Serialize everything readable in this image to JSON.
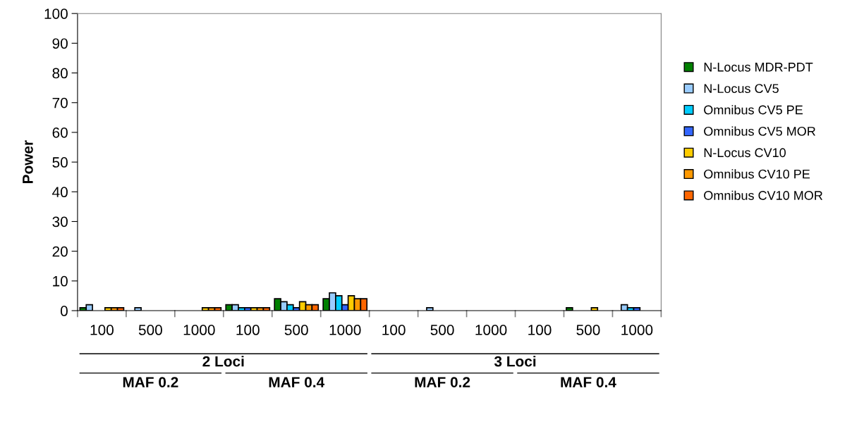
{
  "chart_data": {
    "type": "bar",
    "ylabel": "Power",
    "categories": [
      "100",
      "500",
      "1000",
      "100",
      "500",
      "1000",
      "100",
      "500",
      "1000",
      "100",
      "500",
      "1000"
    ],
    "series": [
      {
        "name": "N-Locus MDR-PDT",
        "color": "#008000",
        "values": [
          1,
          0,
          0,
          2,
          4,
          4,
          0,
          0,
          0,
          0,
          1,
          0
        ]
      },
      {
        "name": "N-Locus CV5",
        "color": "#99ccff",
        "values": [
          2,
          1,
          0,
          2,
          3,
          6,
          0,
          1,
          0,
          0,
          0,
          2
        ]
      },
      {
        "name": "Omnibus CV5 PE",
        "color": "#00ccff",
        "values": [
          0,
          0,
          0,
          1,
          2,
          5,
          0,
          0,
          0,
          0,
          0,
          1
        ]
      },
      {
        "name": "Omnibus CV5 MOR",
        "color": "#3366ff",
        "values": [
          0,
          0,
          0,
          1,
          1,
          2,
          0,
          0,
          0,
          0,
          0,
          1
        ]
      },
      {
        "name": "N-Locus CV10",
        "color": "#ffcc00",
        "values": [
          1,
          0,
          1,
          1,
          3,
          5,
          0,
          0,
          0,
          0,
          1,
          0
        ]
      },
      {
        "name": "Omnibus CV10 PE",
        "color": "#ff9900",
        "values": [
          1,
          0,
          1,
          1,
          2,
          4,
          0,
          0,
          0,
          0,
          0,
          0
        ]
      },
      {
        "name": "Omnibus CV10 MOR",
        "color": "#ff6600",
        "values": [
          1,
          0,
          1,
          1,
          2,
          4,
          0,
          0,
          0,
          0,
          0,
          0
        ]
      }
    ],
    "annotations": [
      "2 Loci",
      "3 Loci",
      "MAF 0.2",
      "MAF 0.4",
      "MAF 0.2",
      "MAF 0.4"
    ],
    "ylim": [
      0,
      100
    ],
    "yticks": [
      0,
      10,
      20,
      30,
      40,
      50,
      60,
      70,
      80,
      90,
      100
    ],
    "grid": false,
    "legend": "right"
  }
}
